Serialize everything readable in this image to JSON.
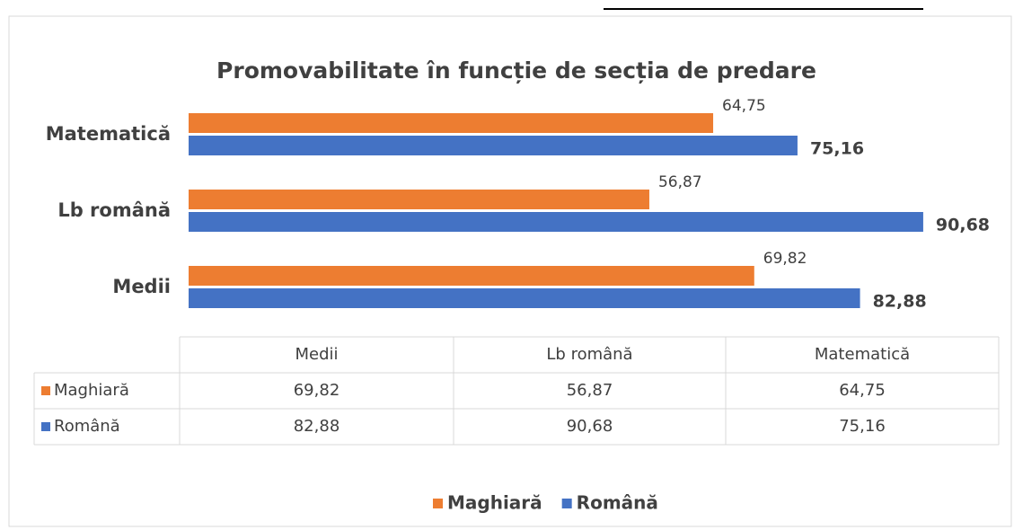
{
  "chart_data": {
    "type": "barh",
    "title": "Promovabilitate în funcție de secția de predare",
    "categories": [
      "Medii",
      "Lb română",
      "Matematică"
    ],
    "series": [
      {
        "name": "Maghiară",
        "color": "#ed7d31",
        "values": [
          69.82,
          56.87,
          64.75
        ],
        "value_labels": [
          "69,82",
          "56,87",
          "64,75"
        ]
      },
      {
        "name": "Română",
        "color": "#4472c4",
        "values": [
          82.88,
          90.68,
          75.16
        ],
        "value_labels": [
          "82,88",
          "90,68",
          "75,16"
        ]
      }
    ],
    "xlim": [
      0,
      100
    ],
    "legend": "bottom"
  }
}
